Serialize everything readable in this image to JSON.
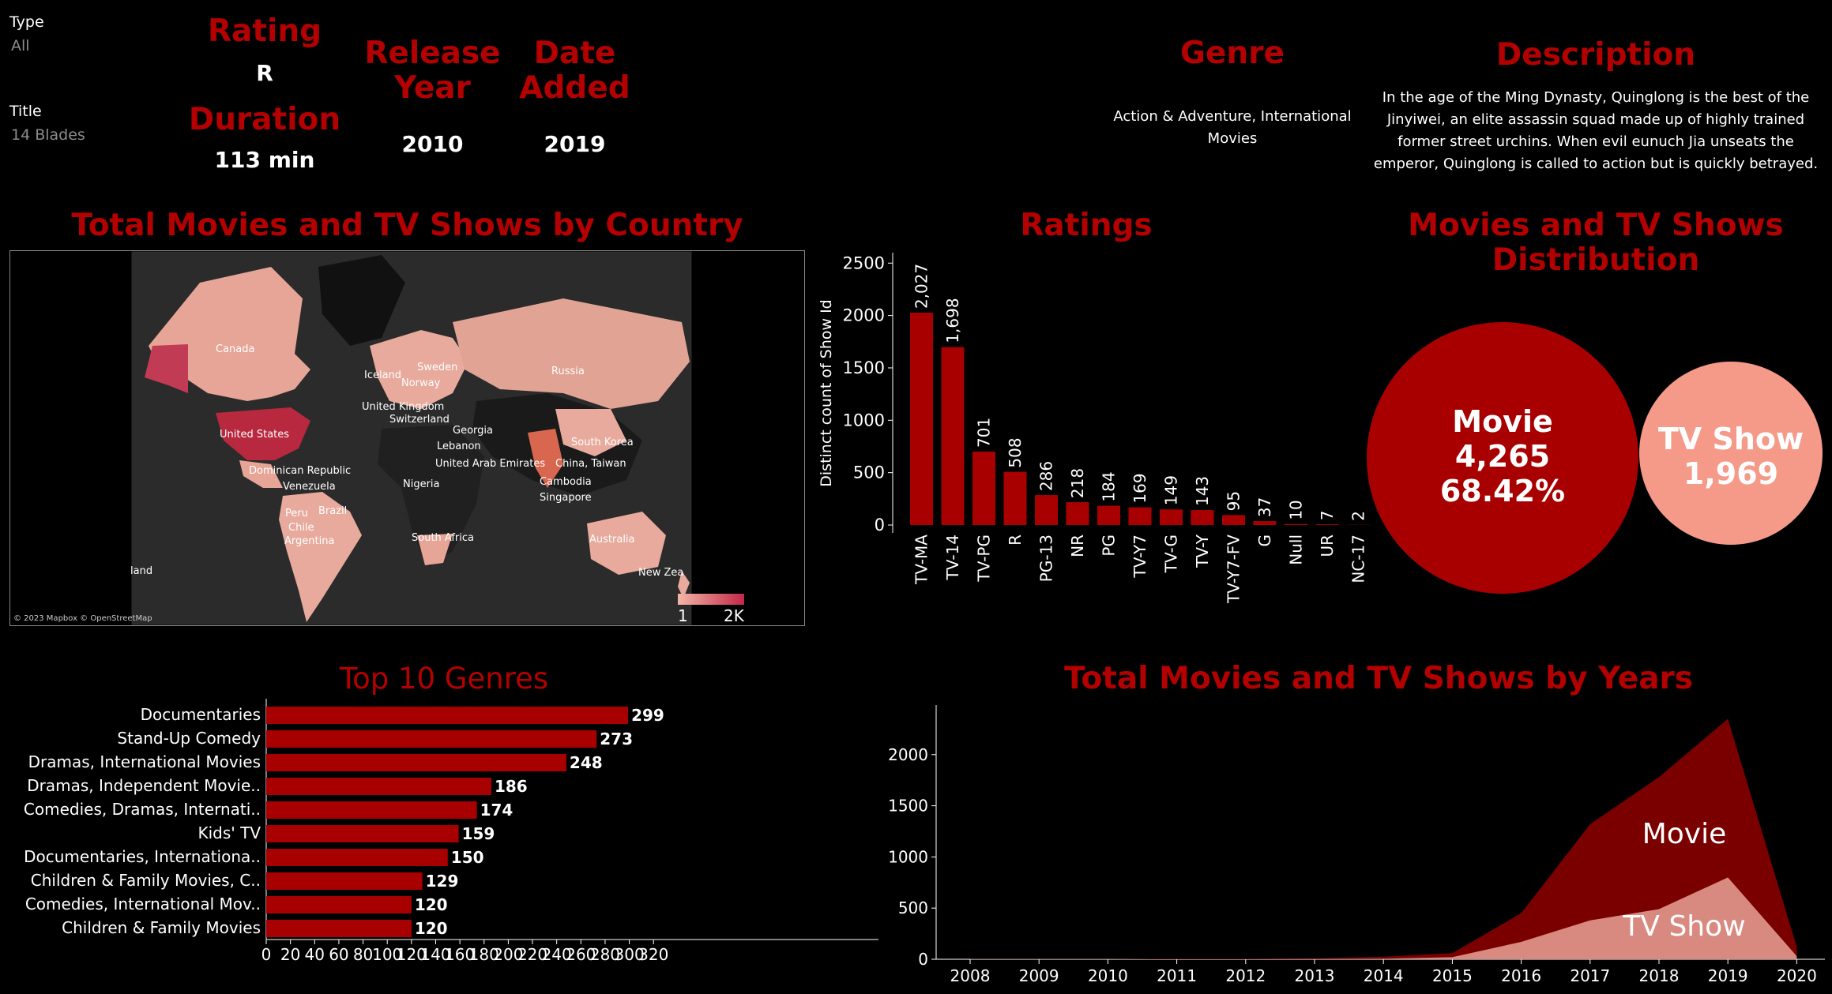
{
  "filters": {
    "type_label": "Type",
    "type_value": "All",
    "title_label": "Title",
    "title_value": "14 Blades"
  },
  "details": {
    "rating_label": "Rating",
    "rating_value": "R",
    "duration_label": "Duration",
    "duration_value": "113 min",
    "release_label_1": "Release",
    "release_label_2": "Year",
    "release_value": "2010",
    "added_label_1": "Date",
    "added_label_2": "Added",
    "added_value": "2019",
    "genre_label": "Genre",
    "genre_value_1": "Action & Adventure, International",
    "genre_value_2": "Movies",
    "description_label": "Description",
    "description_lines": [
      "In the age of the Ming Dynasty, Quinglong is the best of the",
      "Jinyiwei, an elite assassin squad made up of highly trained",
      "former street urchins. When evil eunuch Jia unseats the",
      "emperor, Quinglong is called to action but is quickly betrayed."
    ]
  },
  "map": {
    "title": "Total Movies and TV Shows by Country",
    "credit": "© 2023 Mapbox © OpenStreetMap",
    "legend_min": "1",
    "legend_max": "2K",
    "labels": [
      "Canada",
      "Iceland",
      "Sweden",
      "Norway",
      "Russia",
      "United Kingdom",
      "Switzerland",
      "United States",
      "Georgia",
      "Lebanon",
      "South Korea",
      "United Arab Emirates",
      "China, Taiwan",
      "Dominican Republic",
      "Venezuela",
      "Nigeria",
      "Cambodia",
      "Singapore",
      "Peru",
      "Brazil",
      "Chile",
      "Argentina",
      "South Africa",
      "Australia",
      "New Zea",
      "land"
    ],
    "colors": {
      "low": "#f4b6a6",
      "high": "#c2284a"
    }
  },
  "ratings": {
    "title": "Ratings",
    "ylabel": "Distinct count of Show Id",
    "yticks": [
      "0",
      "500",
      "1000",
      "1500",
      "2000",
      "2500"
    ]
  },
  "distribution": {
    "title_1": "Movies and TV Shows",
    "title_2": "Distribution",
    "movie_label": "Movie",
    "movie_count": "4,265",
    "movie_pct": "68.42%",
    "tv_label": "TV Show",
    "tv_count": "1,969",
    "colors": {
      "movie": "#a80000",
      "tv": "#f59a88"
    }
  },
  "genres": {
    "title": "Top 10 Genres"
  },
  "years": {
    "title": "Total Movies and TV Shows by Years",
    "movie_label": "Movie",
    "tv_label": "TV Show",
    "yticks": [
      "0",
      "500",
      "1000",
      "1500",
      "2000"
    ]
  },
  "chart_data": [
    {
      "type": "bar",
      "title": "Ratings",
      "ylabel": "Distinct count of Show Id",
      "ylim": [
        0,
        2600
      ],
      "categories": [
        "TV-MA",
        "TV-14",
        "TV-PG",
        "R",
        "PG-13",
        "NR",
        "PG",
        "TV-Y7",
        "TV-G",
        "TV-Y",
        "TV-Y7-FV",
        "G",
        "Null",
        "UR",
        "NC-17"
      ],
      "values": [
        2027,
        1698,
        701,
        508,
        286,
        218,
        184,
        169,
        149,
        143,
        95,
        37,
        10,
        7,
        2
      ],
      "data_labels": [
        "2,027",
        "1,698",
        "701",
        "508",
        "286",
        "218",
        "184",
        "169",
        "149",
        "143",
        "95",
        "37",
        "10",
        "7",
        "2"
      ],
      "color": "#a80000"
    },
    {
      "type": "pie",
      "title": "Movies and TV Shows Distribution",
      "categories": [
        "Movie",
        "TV Show"
      ],
      "values": [
        4265,
        1969
      ]
    },
    {
      "type": "bar",
      "orientation": "horizontal",
      "title": "Top 10 Genres",
      "categories": [
        "Documentaries",
        "Stand-Up Comedy",
        "Dramas, International Movies",
        "Dramas, Independent Movie..",
        "Comedies, Dramas, Internati..",
        "Kids' TV",
        "Documentaries, Internationa..",
        "Children & Family Movies, C..",
        "Comedies, International Mov..",
        "Children & Family Movies"
      ],
      "values": [
        299,
        273,
        248,
        186,
        174,
        159,
        150,
        129,
        120,
        120
      ],
      "xticks": [
        "0",
        "20",
        "40",
        "60",
        "80",
        "100",
        "120",
        "140",
        "160",
        "180",
        "200",
        "220",
        "240",
        "260",
        "280",
        "300",
        "320"
      ],
      "xlim": [
        0,
        330
      ],
      "color": "#a80000"
    },
    {
      "type": "area",
      "title": "Total Movies and TV Shows by Years",
      "x": [
        "2008",
        "2009",
        "2010",
        "2011",
        "2012",
        "2013",
        "2014",
        "2015",
        "2016",
        "2017",
        "2018",
        "2019",
        "2020"
      ],
      "series": [
        {
          "name": "Movie",
          "values": [
            2,
            2,
            2,
            5,
            5,
            10,
            25,
            60,
            450,
            1320,
            1780,
            2350,
            120
          ],
          "color": "#7a0000"
        },
        {
          "name": "TV Show",
          "values": [
            0,
            0,
            0,
            0,
            0,
            2,
            5,
            20,
            170,
            380,
            490,
            800,
            30
          ],
          "color": "#d98a80"
        }
      ],
      "ylim": [
        0,
        2500
      ]
    }
  ]
}
